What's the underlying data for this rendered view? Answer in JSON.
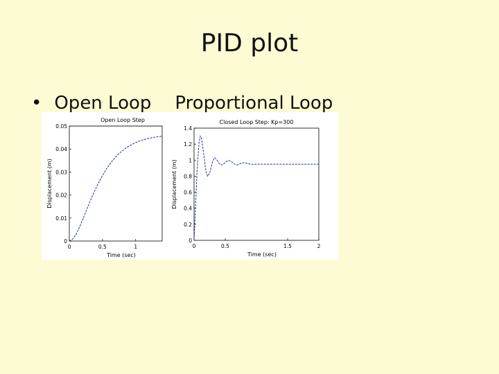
{
  "slide": {
    "title": "PID plot",
    "bullet": "•",
    "item_left": "Open Loop",
    "item_right": "Proportional Loop"
  },
  "colors": {
    "background": "#fdfbd3",
    "line": "#1f2fa0",
    "axis": "#000000"
  },
  "chart_data": [
    {
      "type": "line",
      "title": "Open Loop Step",
      "xlabel": "Time (sec)",
      "ylabel": "Displacement (m)",
      "xlim": [
        0,
        1.4
      ],
      "ylim": [
        0,
        0.05
      ],
      "xticks": [
        0,
        0.5,
        1
      ],
      "xtick_labels": [
        "0",
        "0.5",
        "1"
      ],
      "yticks": [
        0,
        0.01,
        0.02,
        0.03,
        0.04,
        0.05
      ],
      "ytick_labels": [
        "0",
        "0.01",
        "0.02",
        "0.03",
        "0.04",
        "0.05"
      ],
      "reference_line": 0.05,
      "grid": false,
      "x": [
        0,
        0.05,
        0.1,
        0.15,
        0.2,
        0.25,
        0.3,
        0.35,
        0.4,
        0.45,
        0.5,
        0.55,
        0.6,
        0.65,
        0.7,
        0.75,
        0.8,
        0.85,
        0.9,
        0.95,
        1.0,
        1.05,
        1.1,
        1.15,
        1.2,
        1.25,
        1.3,
        1.35,
        1.4
      ],
      "y": [
        0,
        0.0008,
        0.0028,
        0.0058,
        0.0092,
        0.0128,
        0.0164,
        0.0198,
        0.0229,
        0.0258,
        0.0285,
        0.0309,
        0.033,
        0.0349,
        0.0366,
        0.038,
        0.0393,
        0.0404,
        0.0413,
        0.0421,
        0.0428,
        0.0434,
        0.0439,
        0.0443,
        0.0447,
        0.045,
        0.0452,
        0.0454,
        0.0456
      ]
    },
    {
      "type": "line",
      "title": "Closed Loop Step: Kp=300",
      "xlabel": "Time (sec)",
      "ylabel": "Displacement (m)",
      "xlim": [
        0,
        2
      ],
      "ylim": [
        0,
        1.4
      ],
      "xticks": [
        0,
        0.5,
        1.5,
        2
      ],
      "xtick_labels": [
        "0",
        "0.5",
        "1.5",
        "2"
      ],
      "yticks": [
        0,
        0.2,
        0.4,
        0.6,
        0.8,
        1,
        1.2,
        1.4
      ],
      "ytick_labels": [
        "0",
        "0.2",
        "0.4",
        "0.6",
        "0.8",
        "1",
        "1.2",
        "1.4"
      ],
      "grid": false,
      "x": [
        0,
        0.02,
        0.05,
        0.08,
        0.1,
        0.12,
        0.15,
        0.18,
        0.2,
        0.22,
        0.25,
        0.28,
        0.3,
        0.33,
        0.36,
        0.4,
        0.45,
        0.5,
        0.55,
        0.6,
        0.65,
        0.7,
        0.75,
        0.8,
        0.85,
        0.9,
        0.95,
        1.0,
        1.1,
        1.2,
        1.4,
        1.6,
        1.8,
        2.0
      ],
      "y": [
        0,
        0.35,
        0.9,
        1.22,
        1.3,
        1.27,
        1.1,
        0.92,
        0.83,
        0.8,
        0.84,
        0.93,
        0.99,
        1.03,
        1.01,
        0.96,
        0.94,
        0.97,
        1.0,
        0.98,
        0.95,
        0.94,
        0.96,
        0.97,
        0.96,
        0.95,
        0.95,
        0.95,
        0.95,
        0.95,
        0.95,
        0.95,
        0.95,
        0.95
      ]
    }
  ]
}
